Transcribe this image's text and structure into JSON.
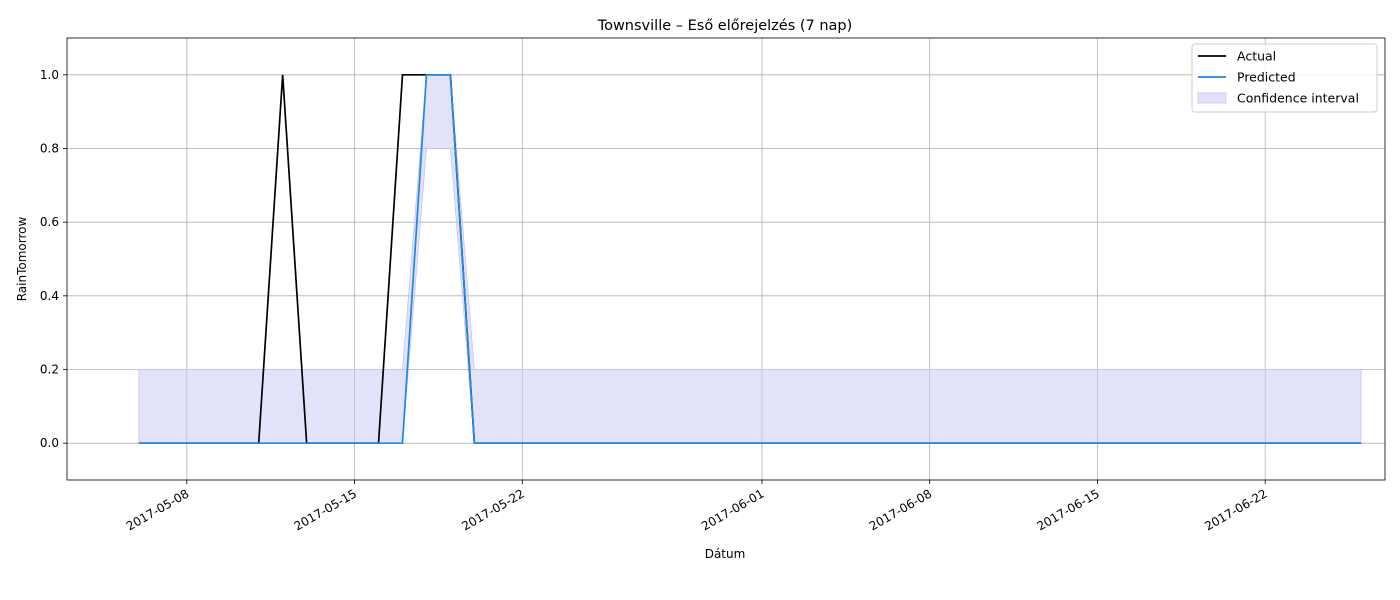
{
  "chart_data": {
    "type": "line",
    "title": "Townsville – Eső előrejelzés (7 nap)",
    "xlabel": "Dátum",
    "ylabel": "RainTomorrow",
    "xlim": [
      "2017-05-03",
      "2017-06-27"
    ],
    "ylim": [
      -0.1,
      1.1
    ],
    "yticks": [
      0.0,
      0.2,
      0.4,
      0.6,
      0.8,
      1.0
    ],
    "ytick_labels": [
      "0.0",
      "0.2",
      "0.4",
      "0.6",
      "0.8",
      "1.0"
    ],
    "xticks": [
      "2017-05-08",
      "2017-05-15",
      "2017-05-22",
      "2017-06-01",
      "2017-06-08",
      "2017-06-15",
      "2017-06-22"
    ],
    "grid": true,
    "legend_position": "top-right",
    "series": [
      {
        "name": "Actual",
        "color": "#000000",
        "points": [
          {
            "x": "2017-05-06",
            "y": 0
          },
          {
            "x": "2017-05-11",
            "y": 0
          },
          {
            "x": "2017-05-12",
            "y": 1
          },
          {
            "x": "2017-05-13",
            "y": 0
          },
          {
            "x": "2017-05-16",
            "y": 0
          },
          {
            "x": "2017-05-17",
            "y": 1
          },
          {
            "x": "2017-05-19",
            "y": 1
          },
          {
            "x": "2017-05-20",
            "y": 0
          },
          {
            "x": "2017-06-26",
            "y": 0
          }
        ]
      },
      {
        "name": "Predicted",
        "color": "#1e88e5",
        "points": [
          {
            "x": "2017-05-06",
            "y": 0
          },
          {
            "x": "2017-05-17",
            "y": 0
          },
          {
            "x": "2017-05-18",
            "y": 1
          },
          {
            "x": "2017-05-19",
            "y": 1
          },
          {
            "x": "2017-05-20",
            "y": 0
          },
          {
            "x": "2017-06-26",
            "y": 0
          }
        ]
      }
    ],
    "confidence_interval": {
      "name": "Confidence interval",
      "color": "#c5c5f7",
      "points": [
        {
          "x": "2017-05-06",
          "lower": 0,
          "upper": 0.2
        },
        {
          "x": "2017-05-17",
          "lower": 0,
          "upper": 0.2
        },
        {
          "x": "2017-05-18",
          "lower": 0.8,
          "upper": 1.0
        },
        {
          "x": "2017-05-19",
          "lower": 0.8,
          "upper": 1.0
        },
        {
          "x": "2017-05-20",
          "lower": 0,
          "upper": 0.2
        },
        {
          "x": "2017-06-26",
          "lower": 0,
          "upper": 0.2
        }
      ]
    }
  }
}
